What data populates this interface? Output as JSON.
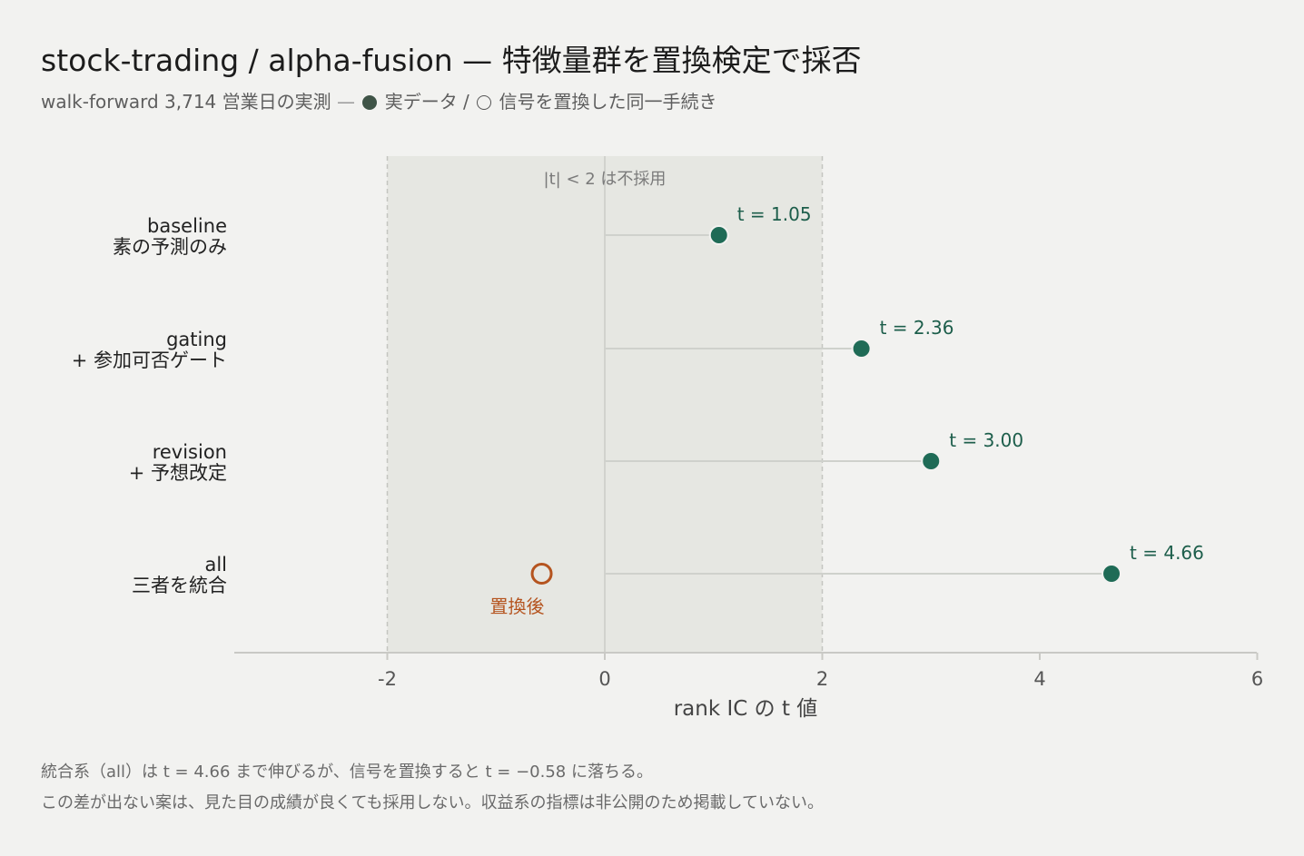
{
  "title": "stock-trading / alpha-fusion — 特徴量群を置換検定で採否",
  "subtitle": {
    "prefix": "walk-forward 3,714 営業日の実測",
    "dash": "—",
    "real_label": "実データ /",
    "perm_label": "信号を置換した同一手続き"
  },
  "notes": [
    "統合系（all）は t = 4.66 まで伸びるが、信号を置換すると t = −0.58 に落ちる。",
    "この差が出ない案は、見た目の成績が良くても採用しない。収益系の指標は非公開のため掲載していない。"
  ],
  "colors": {
    "real": "#1f6b56",
    "permuted": "#b5541f",
    "band": "#e6e7e2",
    "stem": "#cfd1cc",
    "axis": "#c9c9c5"
  },
  "chart_data": {
    "type": "scatter",
    "xlabel": "rank IC の t 値",
    "xlim": [
      -3.5,
      6
    ],
    "xticks": [
      -2,
      0,
      2,
      4,
      6
    ],
    "xtick_labels": [
      "-2",
      "0",
      "2",
      "4",
      "6"
    ],
    "reject_band": {
      "from": -2,
      "to": 2,
      "label": "|t| < 2 は不採用"
    },
    "grid": false,
    "categories": [
      {
        "name": "baseline",
        "desc": "素の予測のみ"
      },
      {
        "name": "gating",
        "desc": "+ 参加可否ゲート"
      },
      {
        "name": "revision",
        "desc": "+ 予想改定"
      },
      {
        "name": "all",
        "desc": "三者を統合"
      }
    ],
    "series": [
      {
        "values": [
          1.05,
          2.36,
          3.0,
          4.66
        ],
        "labels": [
          "t = 1.05",
          "t = 2.36",
          "t = 3.00",
          "t = 4.66"
        ]
      },
      {
        "category": "all",
        "value": -0.58,
        "label": "置換後"
      }
    ]
  }
}
